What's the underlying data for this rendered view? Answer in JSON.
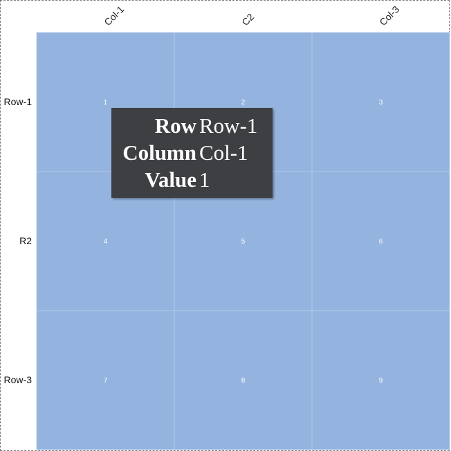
{
  "chart_data": {
    "type": "heatmap",
    "columns": [
      "Col-1",
      "C2",
      "Col-3"
    ],
    "rows": [
      "Row-1",
      "R2",
      "Row-3"
    ],
    "values": [
      [
        1,
        2,
        3
      ],
      [
        4,
        5,
        6
      ],
      [
        7,
        8,
        9
      ]
    ],
    "cell_color": "#94b4df",
    "grid_line_color": "#b4cbe9",
    "value_label_color": "#ffffff"
  },
  "tooltip": {
    "row_key": "Row",
    "row_value": "Row-1",
    "column_key": "Column",
    "column_value": "Col-1",
    "value_key": "Value",
    "value_value": "1",
    "background": "#3e3f42"
  }
}
